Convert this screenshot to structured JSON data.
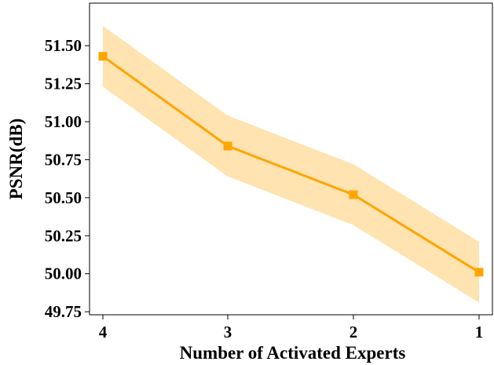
{
  "chart_data": {
    "type": "line",
    "title": "",
    "xlabel": "Number of Activated Experts",
    "ylabel": "PSNR(dB)",
    "categories": [
      "4",
      "3",
      "2",
      "1"
    ],
    "series": [
      {
        "values": [
          51.43,
          50.84,
          50.52,
          50.01
        ],
        "band_lower": [
          51.23,
          50.64,
          50.32,
          49.81
        ],
        "band_upper": [
          51.63,
          51.04,
          50.72,
          50.21
        ],
        "color": "#FFA500",
        "band_color": "#FFE3B0",
        "marker": "square"
      }
    ],
    "yticks": [
      "49.75",
      "50.00",
      "50.25",
      "50.50",
      "50.75",
      "51.00",
      "51.25",
      "51.50"
    ],
    "ylim": [
      49.73,
      51.78
    ],
    "grid": false,
    "legend": "none"
  }
}
